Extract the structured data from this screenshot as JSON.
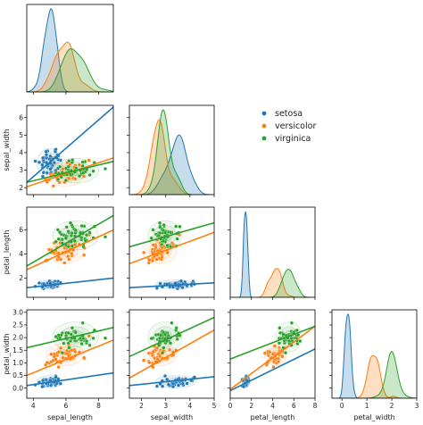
{
  "chart_data": {
    "type": "pairplot",
    "variables": [
      "sepal_length",
      "sepal_width",
      "petal_length",
      "petal_width"
    ],
    "axis_labels": {
      "x": [
        "sepal_length",
        "sepal_width",
        "petal_length",
        "petal_width"
      ],
      "y": [
        "",
        "sepal_width",
        "petal_length",
        "petal_width"
      ]
    },
    "axis_ranges": {
      "sepal_length": [
        3.6,
        8.9
      ],
      "sepal_width": [
        1.5,
        5.0
      ],
      "petal_length": [
        0.0,
        8.0
      ],
      "petal_width": [
        -0.4,
        3.0
      ]
    },
    "ticks": {
      "sepal_length": [
        4,
        6,
        8
      ],
      "sepal_width": [
        2,
        3,
        4,
        5
      ],
      "petal_length": [
        0,
        2,
        4,
        6,
        8
      ],
      "petal_width": [
        0,
        1,
        2,
        3
      ]
    },
    "y_ticks": {
      "sepal_width": [
        2,
        3,
        4,
        5,
        6
      ],
      "petal_length": [
        2,
        4,
        6
      ],
      "petal_width": [
        0.0,
        0.5,
        1.0,
        1.5,
        2.0,
        2.5,
        3.0
      ]
    },
    "y_ranges": {
      "sepal_width": [
        1.6,
        6.7
      ],
      "petal_length": [
        0.4,
        7.9
      ],
      "petal_width": [
        -0.4,
        3.1
      ]
    },
    "diagonal": "kde",
    "lower": "scatter with regression line and kde contours",
    "legend": {
      "placement": "upper-right area",
      "entries": [
        "setosa",
        "versicolor",
        "virginica"
      ]
    },
    "series": [
      {
        "name": "setosa",
        "color": "#1f77b4",
        "means": [
          5.0,
          3.4,
          1.46,
          0.25
        ],
        "sds": [
          0.35,
          0.38,
          0.17,
          0.11
        ]
      },
      {
        "name": "versicolor",
        "color": "#ff7f0e",
        "means": [
          5.94,
          2.77,
          4.26,
          1.33
        ],
        "sds": [
          0.52,
          0.31,
          0.47,
          0.2
        ]
      },
      {
        "name": "virginica",
        "color": "#2ca02c",
        "means": [
          6.59,
          2.97,
          5.55,
          2.03
        ],
        "sds": [
          0.64,
          0.32,
          0.55,
          0.27
        ]
      }
    ],
    "regression_lines": {
      "sepal_width~sepal_length": {
        "x": [
          3.6,
          8.9
        ],
        "setosa": [
          2.3,
          6.6
        ],
        "versicolor": [
          2.05,
          3.7
        ],
        "virginica": [
          2.3,
          3.5
        ]
      },
      "petal_length~sepal_length": {
        "x": [
          3.6,
          8.9
        ],
        "setosa": [
          1.2,
          2.0
        ],
        "versicolor": [
          2.7,
          6.0
        ],
        "virginica": [
          3.0,
          7.2
        ]
      },
      "petal_length~sepal_width": {
        "x": [
          1.5,
          5.0
        ],
        "setosa": [
          1.2,
          1.6
        ],
        "versicolor": [
          3.2,
          5.8
        ],
        "virginica": [
          4.6,
          6.6
        ]
      },
      "petal_width~sepal_length": {
        "x": [
          3.6,
          8.9
        ],
        "setosa": [
          0.1,
          0.6
        ],
        "versicolor": [
          0.5,
          1.9
        ],
        "virginica": [
          1.6,
          2.4
        ]
      },
      "petal_width~sepal_width": {
        "x": [
          1.5,
          5.0
        ],
        "setosa": [
          0.1,
          0.45
        ],
        "versicolor": [
          0.4,
          2.3
        ],
        "virginica": [
          1.25,
          2.8
        ]
      },
      "petal_width~petal_length": {
        "x": [
          0.0,
          8.0
        ],
        "setosa": [
          -0.1,
          1.55
        ],
        "versicolor": [
          -0.05,
          2.45
        ],
        "virginica": [
          1.15,
          2.45
        ]
      }
    }
  }
}
